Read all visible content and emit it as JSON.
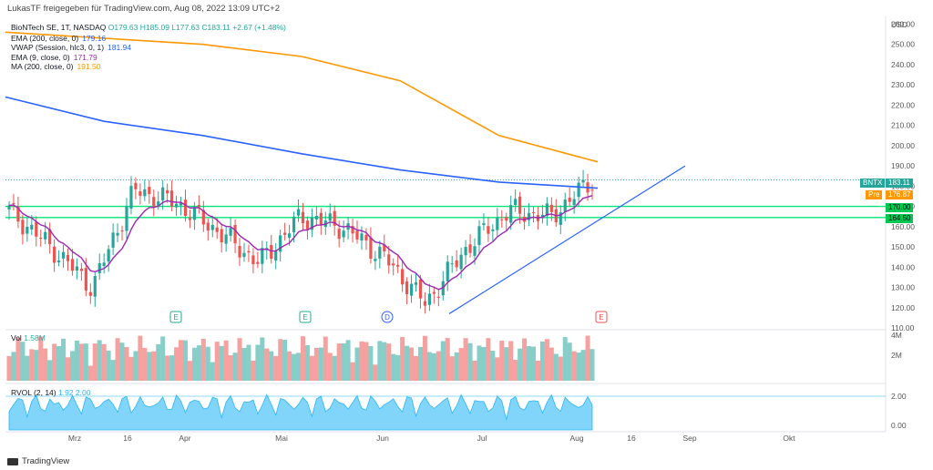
{
  "header": {
    "text": "LukasTF freigegeben für TradingView.com, Aug 08, 2022 13:09 UTC+2"
  },
  "symbol_line": {
    "name": "BioNTech SE, 1T, NASDAQ",
    "open": "O179.63",
    "high": "H185.09",
    "low": "L177.63",
    "close": "C183.11",
    "change": "+2.67 (+1.48%)"
  },
  "indicators": [
    {
      "label": "EMA (200, close, 0)",
      "value": "179.16",
      "color": "#2962ff"
    },
    {
      "label": "VWAP (Session, hlc3, 0, 1)",
      "value": "181.94",
      "color": "#2962ff"
    },
    {
      "label": "EMA (9, close, 0)",
      "value": "171.79",
      "color": "#9c27b0"
    },
    {
      "label": "MA (200, close, 0)",
      "value": "191.50",
      "color": "#ff9800"
    }
  ],
  "volume_pane": {
    "label": "Vol",
    "value": "1.58M",
    "axis": [
      "4M",
      "2M"
    ]
  },
  "rvol_pane": {
    "label": "RVOL (2, 14)",
    "value1": "1.92",
    "value2": "2.00",
    "axis": [
      "2.00",
      "0.00"
    ]
  },
  "price_axis": {
    "currency": "USD",
    "ticks": [
      "260.00",
      "250.00",
      "240.00",
      "230.00",
      "220.00",
      "210.00",
      "200.00",
      "190.00",
      "180.00",
      "170.00",
      "160.00",
      "150.00",
      "140.00",
      "130.00",
      "120.00",
      "110.00"
    ]
  },
  "time_axis": {
    "ticks": [
      "Mrz",
      "16",
      "Apr",
      "Mai",
      "Jun",
      "Jul",
      "Aug",
      "16",
      "Sep",
      "Okt"
    ]
  },
  "price_tags": [
    {
      "symbol": "BNTX",
      "value": "183.11",
      "color": "#26a69a"
    },
    {
      "symbol": "Pre",
      "value": "176.87",
      "color": "#ff9800"
    },
    {
      "symbol": "",
      "value": "170.00",
      "color": "#00c853"
    },
    {
      "symbol": "",
      "value": "164.50",
      "color": "#00c853"
    }
  ],
  "event_markers": [
    "E",
    "E",
    "D",
    "E"
  ],
  "footer": {
    "brand": "TradingView"
  },
  "colors": {
    "up": "#26a69a",
    "down": "#ef5350",
    "ma200": "#ff9800",
    "ema200": "#2962ff",
    "ema9": "#9c27b0",
    "support": "#00e676",
    "trendline": "#2962ff"
  },
  "chart_data": {
    "type": "line",
    "title": "BioNTech SE, 1T, NASDAQ",
    "ylabel": "USD",
    "ylim": [
      110,
      262
    ],
    "x": [
      "Mrz",
      "16",
      "Apr",
      "Mai",
      "Jun",
      "Jul",
      "Aug"
    ],
    "series": [
      {
        "name": "MA (200, close, 0)",
        "values": [
          256,
          253,
          250,
          244,
          232,
          205,
          192
        ]
      },
      {
        "name": "EMA (200, close, 0)",
        "values": [
          224,
          212,
          205,
          196,
          188,
          182,
          179
        ]
      },
      {
        "name": "EMA (9, close, 0)",
        "values": [
          158,
          146,
          172,
          150,
          160,
          135,
          172
        ]
      }
    ],
    "horizontal_levels": [
      170,
      164.5
    ],
    "close_points": [
      168,
      150,
      130,
      178,
      172,
      158,
      142,
      165,
      160,
      145,
      122,
      150,
      168,
      165,
      183
    ]
  }
}
